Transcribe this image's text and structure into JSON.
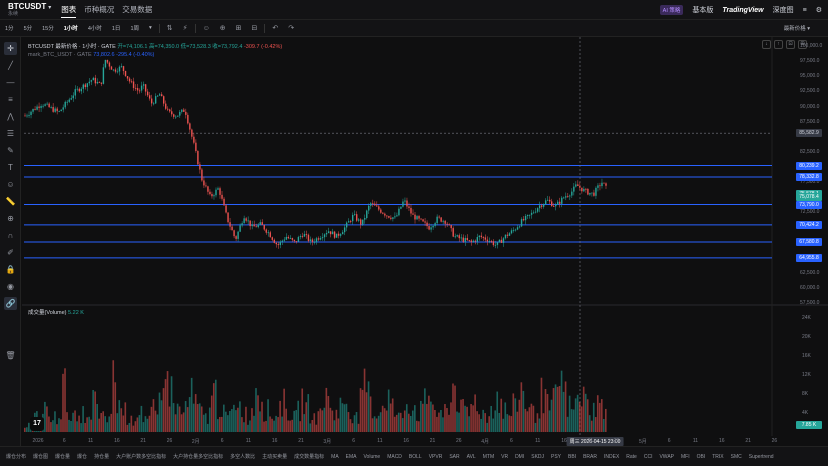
{
  "header": {
    "symbol": "BTCUSDT",
    "symbol_caret": "▾",
    "symbol_sub": "永续",
    "tabs": [
      "图表",
      "币种概况",
      "交易数据"
    ],
    "ai_label": "AI 策略",
    "basic_version": "基本版",
    "tradingview": "TradingView",
    "depth": "深度图",
    "right_icons": [
      "≡",
      "⚙"
    ]
  },
  "toolbar": {
    "intervals": [
      "1分",
      "5分",
      "15分",
      "1小时",
      "4小时",
      "1日",
      "1周"
    ],
    "active_interval": "1小时",
    "interval_more": "▾",
    "icons": [
      "⇅",
      "⚡",
      "☺",
      "⊕",
      "⊞",
      "⊟",
      "↶",
      "↷"
    ],
    "price_type": "最新价格 ▾"
  },
  "left_tools": [
    {
      "name": "crosshair-icon",
      "glyph": "✛"
    },
    {
      "name": "trend-line-icon",
      "glyph": "╱"
    },
    {
      "name": "horizontal-line-icon",
      "glyph": "—"
    },
    {
      "name": "parallel-channel-icon",
      "glyph": "≡"
    },
    {
      "name": "pitchfork-icon",
      "glyph": "⋀"
    },
    {
      "name": "fib-retracement-icon",
      "glyph": "☰"
    },
    {
      "name": "brush-icon",
      "glyph": "✎"
    },
    {
      "name": "text-icon",
      "glyph": "T"
    },
    {
      "name": "emoji-icon",
      "glyph": "☺"
    },
    {
      "name": "ruler-icon",
      "glyph": "📏"
    },
    {
      "name": "zoom-in-icon",
      "glyph": "⊕"
    },
    {
      "name": "magnet-icon",
      "glyph": "∩"
    },
    {
      "name": "lock-drawing-icon",
      "glyph": "✐"
    },
    {
      "name": "lock-icon",
      "glyph": "🔒"
    },
    {
      "name": "eye-icon",
      "glyph": "◉"
    },
    {
      "name": "link-icon",
      "glyph": "🔗"
    },
    {
      "name": "trash-icon",
      "glyph": "🗑"
    }
  ],
  "legend": {
    "title": "BTCUSDT 最新价格 · 1小时 · GATE",
    "ohlc": "开=74,106.1  高=74,350.0  低=73,528.3  收=73,792.4",
    "change": "-309.7 (-0.42%)",
    "mark_name": "mark_BTC_USDT · GATE",
    "mark_value": "73,802.6  -295.4 (-0.40%)",
    "volume_label": "成交量(Volume)",
    "volume_value": "5.22 K"
  },
  "price_axis": {
    "labels": [
      "100,000.0",
      "97,500.0",
      "95,000.0",
      "92,500.0",
      "90,000.0",
      "87,500.0",
      "82,500.0",
      "80,000.0",
      "77,500.0",
      "72,500.0",
      "70,000.0",
      "65,000.0",
      "62,500.0",
      "60,000.0",
      "57,500.0"
    ],
    "tags": [
      {
        "text": "85,582.9",
        "style": "grey"
      },
      {
        "text": "80,239.2",
        "style": "blue"
      },
      {
        "text": "78,332.8",
        "style": "blue"
      },
      {
        "text": "75,578.1",
        "style": "green"
      },
      {
        "text": "75,078.4",
        "style": "green"
      },
      {
        "text": "73,790.0",
        "style": "blue"
      },
      {
        "text": "70,424.2",
        "style": "blue"
      },
      {
        "text": "67,580.8",
        "style": "blue"
      },
      {
        "text": "64,955.8",
        "style": "blue"
      }
    ]
  },
  "volume_axis": {
    "labels": [
      "24K",
      "20K",
      "16K",
      "12K",
      "8K",
      "4K"
    ],
    "current": "7.85 K"
  },
  "date_axis": {
    "labels": [
      "2026",
      "6",
      "11",
      "16",
      "21",
      "26",
      "2月",
      "6",
      "11",
      "16",
      "21",
      "3月",
      "6",
      "11",
      "16",
      "21",
      "26",
      "4月",
      "6",
      "11",
      "16",
      "21",
      "26",
      "5月",
      "6",
      "11",
      "16",
      "21",
      "26"
    ],
    "crosshair": "周三 2026-04-15  23:00"
  },
  "chart_controls": [
    "↓",
    "↑",
    "⊡",
    "⊞"
  ],
  "bottom_bar": [
    "爆仓分布",
    "爆仓图",
    "爆仓量",
    "爆仓",
    "持仓量",
    "大户账户数多空比指标",
    "大户持仓量多空比指标",
    "多空人数比",
    "主动买卖量",
    "成交数量指标",
    "MA",
    "EMA",
    "Volume",
    "MACD",
    "BOLL",
    "VPVR",
    "SAR",
    "AVL",
    "MTM",
    "VR",
    "DMI",
    "SKDJ",
    "PSY",
    "BBI",
    "BRAR",
    "INDEX",
    "Rate",
    "CCI",
    "VWAP",
    "MFI",
    "OBI",
    "TRIX",
    "SMC",
    "Supertrend"
  ],
  "tv_logo": "17",
  "colors": {
    "up": "#26a69a",
    "down": "#ef5350",
    "level": "#2962ff",
    "background": "#0f0f10"
  },
  "chart_data": {
    "type": "candlestick",
    "title": "BTCUSDT 最新价格 · 1小时 · GATE",
    "ylim": [
      57500,
      101000
    ],
    "horizontal_levels": [
      80239.2,
      78332.8,
      73790.0,
      70424.2,
      67580.8,
      64955.8
    ],
    "dashed_level": 85582.9,
    "price_path": [
      [
        0,
        88500
      ],
      [
        4,
        90500
      ],
      [
        8,
        89000
      ],
      [
        12,
        92500
      ],
      [
        16,
        94500
      ],
      [
        18,
        93500
      ],
      [
        19,
        97800
      ],
      [
        21,
        96000
      ],
      [
        23,
        96500
      ],
      [
        25,
        94000
      ],
      [
        27,
        92500
      ],
      [
        28,
        93500
      ],
      [
        30,
        90500
      ],
      [
        32,
        92000
      ],
      [
        34,
        89000
      ],
      [
        36,
        88500
      ],
      [
        38,
        89500
      ],
      [
        40,
        84000
      ],
      [
        42,
        78000
      ],
      [
        44,
        75000
      ],
      [
        46,
        76500
      ],
      [
        48,
        71500
      ],
      [
        50,
        68000
      ],
      [
        52,
        72000
      ],
      [
        54,
        70000
      ],
      [
        56,
        70500
      ],
      [
        58,
        69000
      ],
      [
        60,
        67000
      ],
      [
        62,
        68500
      ],
      [
        64,
        67500
      ],
      [
        66,
        69000
      ],
      [
        68,
        67500
      ],
      [
        70,
        68500
      ],
      [
        72,
        69500
      ],
      [
        74,
        68500
      ],
      [
        76,
        70000
      ],
      [
        78,
        72000
      ],
      [
        80,
        70500
      ],
      [
        82,
        74000
      ],
      [
        84,
        73000
      ],
      [
        86,
        72000
      ],
      [
        88,
        71500
      ],
      [
        90,
        74500
      ],
      [
        92,
        72000
      ],
      [
        94,
        71000
      ],
      [
        96,
        70000
      ],
      [
        98,
        71500
      ],
      [
        100,
        71000
      ],
      [
        102,
        68500
      ],
      [
        104,
        68000
      ],
      [
        106,
        67500
      ],
      [
        108,
        68500
      ],
      [
        110,
        68000
      ],
      [
        112,
        67000
      ],
      [
        114,
        68500
      ],
      [
        116,
        69500
      ],
      [
        118,
        71000
      ],
      [
        120,
        72000
      ],
      [
        122,
        73500
      ],
      [
        124,
        74500
      ],
      [
        126,
        73500
      ],
      [
        128,
        75000
      ],
      [
        130,
        76000
      ],
      [
        131,
        77000
      ],
      [
        133,
        76000
      ],
      [
        135,
        75500
      ],
      [
        137,
        77500
      ],
      [
        138,
        76500
      ]
    ],
    "volume_profile": [
      2,
      3,
      4,
      3,
      8,
      5,
      3,
      4,
      6,
      12,
      7,
      4,
      3,
      5,
      4,
      3,
      9,
      6,
      4,
      3,
      5,
      14,
      8,
      6,
      4,
      3,
      5,
      7,
      4,
      3,
      6,
      4,
      9,
      22,
      12,
      8,
      6,
      5,
      7,
      10,
      8,
      6,
      5,
      4,
      8,
      11,
      7,
      5,
      4,
      6,
      9,
      7,
      5,
      4,
      6,
      15,
      9,
      6,
      5,
      4,
      7,
      8,
      6,
      5,
      4,
      6,
      9,
      7,
      5,
      4,
      6,
      10,
      8,
      6,
      5,
      7,
      9,
      6,
      5,
      4,
      8,
      12,
      7,
      5,
      6,
      8,
      10,
      7,
      5,
      4,
      6,
      9,
      7,
      5,
      6,
      8,
      11,
      7,
      5,
      4,
      6,
      8,
      13,
      9,
      6,
      5,
      7,
      9,
      6,
      5,
      4,
      7,
      10,
      8,
      6,
      5,
      7,
      9,
      12,
      8,
      6,
      5,
      7,
      10,
      8,
      6,
      9,
      14,
      10,
      7,
      6,
      8,
      11,
      9,
      7,
      6,
      8,
      7,
      6
    ],
    "volume_ylim": [
      0,
      26000
    ]
  }
}
